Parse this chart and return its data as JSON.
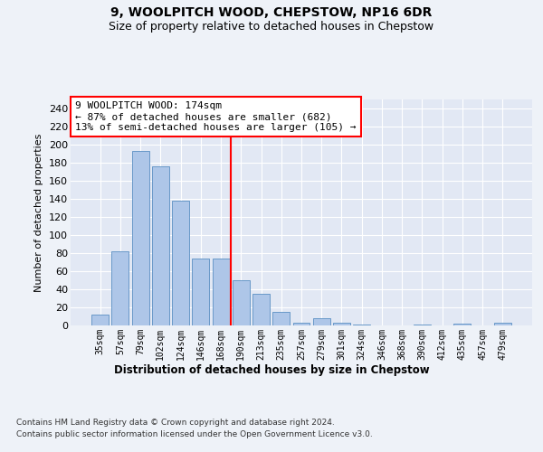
{
  "title1": "9, WOOLPITCH WOOD, CHEPSTOW, NP16 6DR",
  "title2": "Size of property relative to detached houses in Chepstow",
  "xlabel": "Distribution of detached houses by size in Chepstow",
  "ylabel": "Number of detached properties",
  "categories": [
    "35sqm",
    "57sqm",
    "79sqm",
    "102sqm",
    "124sqm",
    "146sqm",
    "168sqm",
    "190sqm",
    "213sqm",
    "235sqm",
    "257sqm",
    "279sqm",
    "301sqm",
    "324sqm",
    "346sqm",
    "368sqm",
    "390sqm",
    "412sqm",
    "435sqm",
    "457sqm",
    "479sqm"
  ],
  "values": [
    12,
    82,
    193,
    176,
    138,
    74,
    74,
    50,
    35,
    15,
    3,
    8,
    3,
    1,
    0,
    0,
    1,
    0,
    2,
    0,
    3
  ],
  "bar_color": "#aec6e8",
  "bar_edge_color": "#5a8fc2",
  "redline_x": 6.5,
  "annotation_text": "9 WOOLPITCH WOOD: 174sqm\n← 87% of detached houses are smaller (682)\n13% of semi-detached houses are larger (105) →",
  "annotation_box_color": "white",
  "annotation_box_edge_color": "red",
  "ylim": [
    0,
    250
  ],
  "yticks": [
    0,
    20,
    40,
    60,
    80,
    100,
    120,
    140,
    160,
    180,
    200,
    220,
    240
  ],
  "footer1": "Contains HM Land Registry data © Crown copyright and database right 2024.",
  "footer2": "Contains public sector information licensed under the Open Government Licence v3.0.",
  "bg_color": "#eef2f8",
  "plot_bg_color": "#e2e8f4"
}
